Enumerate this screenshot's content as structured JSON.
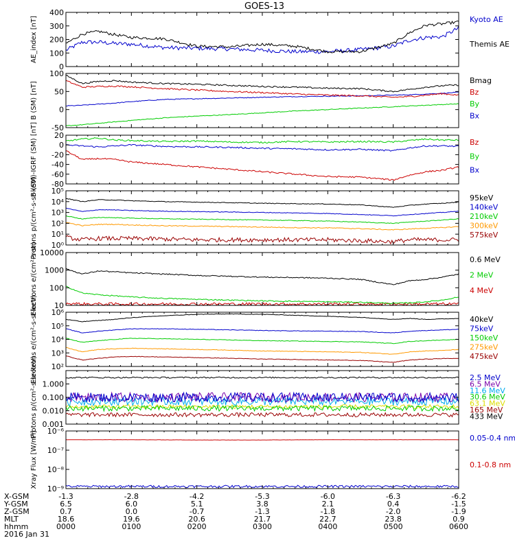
{
  "title": "GOES-13",
  "colors": {
    "black": "#000000",
    "blue": "#0000cc",
    "green": "#00cc00",
    "red": "#cc0000",
    "orange": "#ff9900",
    "cyan": "#00aaee",
    "purple": "#7700aa",
    "yellow": "#dddd00",
    "darkred": "#990000"
  },
  "chart_data": [
    {
      "type": "line",
      "ylabel": "AE_index [nT]",
      "ylim": [
        0,
        400
      ],
      "scale": "linear",
      "yticks": [
        0,
        100,
        200,
        300,
        400
      ],
      "ytick_labels": [
        "0",
        "100",
        "200",
        "300",
        "400"
      ],
      "x": [
        "00:00",
        "00:15",
        "00:30",
        "00:45",
        "01:00",
        "01:30",
        "02:00",
        "02:30",
        "03:00",
        "03:30",
        "04:00",
        "04:30",
        "05:00",
        "05:15",
        "05:30",
        "05:45",
        "06:00"
      ],
      "series": [
        {
          "name": "Kyoto AE",
          "color": "#0000cc",
          "noise": 15,
          "values": [
            120,
            180,
            180,
            170,
            165,
            140,
            135,
            130,
            120,
            110,
            110,
            125,
            150,
            195,
            215,
            220,
            285
          ]
        },
        {
          "name": "Themis AE",
          "color": "#000000",
          "noise": 10,
          "values": [
            170,
            240,
            260,
            235,
            215,
            205,
            150,
            145,
            165,
            150,
            110,
            110,
            170,
            250,
            305,
            315,
            330
          ]
        }
      ]
    },
    {
      "type": "line",
      "ylabel": "B (SM) [nT]",
      "ylim": [
        -50,
        100
      ],
      "scale": "linear",
      "yticks": [
        -50,
        0,
        50,
        100
      ],
      "ytick_labels": [
        "-50",
        "0",
        "50",
        "100"
      ],
      "x": [
        "00:00",
        "00:15",
        "00:30",
        "00:45",
        "01:00",
        "01:30",
        "02:00",
        "02:30",
        "03:00",
        "03:30",
        "04:00",
        "04:30",
        "05:00",
        "05:15",
        "05:30",
        "05:45",
        "06:00"
      ],
      "series": [
        {
          "name": "Bx",
          "color": "#0000cc",
          "noise": 1,
          "values": [
            10,
            12,
            15,
            18,
            22,
            28,
            30,
            32,
            34,
            36,
            37,
            38,
            40,
            41,
            43,
            45,
            48
          ]
        },
        {
          "name": "By",
          "color": "#00cc00",
          "noise": 1,
          "values": [
            -45,
            -42,
            -38,
            -34,
            -30,
            -23,
            -18,
            -14,
            -9,
            -4,
            0,
            4,
            8,
            10,
            12,
            14,
            16
          ]
        },
        {
          "name": "Bz",
          "color": "#cc0000",
          "noise": 2,
          "values": [
            80,
            62,
            64,
            65,
            63,
            58,
            54,
            50,
            47,
            43,
            40,
            38,
            34,
            36,
            40,
            44,
            40
          ]
        },
        {
          "name": "Bmag",
          "color": "#000000",
          "noise": 2,
          "values": [
            95,
            72,
            78,
            80,
            76,
            72,
            70,
            67,
            64,
            62,
            59,
            58,
            50,
            56,
            62,
            66,
            68
          ]
        }
      ]
    },
    {
      "type": "line",
      "ylabel": "B (SM)-IGRF (SM) [nT]",
      "ylim": [
        -80,
        20
      ],
      "scale": "linear",
      "yticks": [
        -80,
        -60,
        -40,
        -20,
        0,
        20
      ],
      "ytick_labels": [
        "-80",
        "-60",
        "-40",
        "-20",
        "0",
        "20"
      ],
      "x": [
        "00:00",
        "00:15",
        "00:30",
        "00:45",
        "01:00",
        "01:30",
        "02:00",
        "02:30",
        "03:00",
        "03:30",
        "04:00",
        "04:30",
        "05:00",
        "05:15",
        "05:30",
        "05:45",
        "06:00"
      ],
      "series": [
        {
          "name": "Bx",
          "color": "#0000cc",
          "noise": 1.5,
          "values": [
            0,
            -2,
            -4,
            -2,
            0,
            -3,
            -4,
            -5,
            -7,
            -8,
            -10,
            -9,
            -12,
            -6,
            -2,
            -2,
            -3
          ]
        },
        {
          "name": "By",
          "color": "#00cc00",
          "noise": 1.5,
          "values": [
            8,
            12,
            14,
            10,
            9,
            7,
            8,
            6,
            5,
            7,
            6,
            7,
            6,
            9,
            12,
            10,
            10
          ]
        },
        {
          "name": "Bz",
          "color": "#cc0000",
          "noise": 1.5,
          "values": [
            -12,
            -30,
            -28,
            -30,
            -35,
            -40,
            -45,
            -50,
            -55,
            -60,
            -65,
            -66,
            -72,
            -62,
            -55,
            -52,
            -45
          ]
        }
      ]
    },
    {
      "type": "line",
      "ylabel": "Protons p/(cm²-s-sr-keV)",
      "ylim": [
        1,
        100000
      ],
      "scale": "log",
      "yticks": [
        1,
        10,
        100,
        1000,
        10000,
        100000
      ],
      "ytick_labels": [
        "10⁰",
        "10¹",
        "10²",
        "10³",
        "10⁴",
        "10⁵"
      ],
      "x": [
        "00:00",
        "00:15",
        "00:30",
        "00:45",
        "01:00",
        "01:30",
        "02:00",
        "02:30",
        "03:00",
        "03:30",
        "04:00",
        "04:30",
        "05:00",
        "05:15",
        "05:30",
        "05:45",
        "06:00"
      ],
      "series": [
        {
          "name": "575keV",
          "color": "#990000",
          "noise": 0.2,
          "values": [
            5,
            3,
            4,
            4,
            4,
            3.5,
            3,
            3,
            3,
            3,
            3,
            2.5,
            2,
            3,
            3,
            3,
            3
          ]
        },
        {
          "name": "300keV",
          "color": "#ff9900",
          "noise": 0.04,
          "values": [
            120,
            60,
            80,
            80,
            70,
            60,
            55,
            50,
            45,
            40,
            38,
            32,
            25,
            30,
            35,
            40,
            50
          ]
        },
        {
          "name": "210keV",
          "color": "#00cc00",
          "noise": 0.03,
          "values": [
            500,
            250,
            350,
            330,
            300,
            260,
            240,
            220,
            200,
            180,
            160,
            130,
            100,
            130,
            160,
            200,
            260
          ]
        },
        {
          "name": "140keV",
          "color": "#0000cc",
          "noise": 0.03,
          "values": [
            2500,
            1200,
            1800,
            1700,
            1500,
            1300,
            1200,
            1100,
            1000,
            900,
            800,
            650,
            500,
            650,
            800,
            1000,
            1300
          ]
        },
        {
          "name": "95keV",
          "color": "#000000",
          "noise": 0.03,
          "values": [
            20000,
            10000,
            15000,
            14000,
            12000,
            10000,
            9000,
            8000,
            7000,
            6500,
            6000,
            5000,
            3000,
            4500,
            6000,
            7000,
            9000
          ]
        }
      ]
    },
    {
      "type": "line",
      "ylabel": "Electrons e/(cm²-s-sr)",
      "ylim": [
        10,
        10000
      ],
      "scale": "log",
      "yticks": [
        10,
        100,
        1000,
        10000
      ],
      "ytick_labels": [
        "10",
        "100",
        "1000",
        "10000"
      ],
      "x": [
        "00:00",
        "00:15",
        "00:30",
        "00:45",
        "01:00",
        "01:30",
        "02:00",
        "02:30",
        "03:00",
        "03:30",
        "04:00",
        "04:30",
        "05:00",
        "05:15",
        "05:30",
        "05:45",
        "06:00"
      ],
      "series": [
        {
          "name": "4 MeV",
          "color": "#cc0000",
          "noise": 0.08,
          "values": [
            13,
            12,
            12,
            12,
            12,
            12,
            12,
            12,
            12,
            12,
            12,
            12,
            12,
            12,
            12,
            12,
            12
          ]
        },
        {
          "name": "2 MeV",
          "color": "#00cc00",
          "noise": 0.03,
          "values": [
            120,
            50,
            40,
            35,
            30,
            25,
            22,
            20,
            18,
            17,
            16,
            15,
            13,
            14,
            16,
            20,
            30
          ]
        },
        {
          "name": "0.6 MeV",
          "color": "#000000",
          "noise": 0.03,
          "values": [
            1200,
            600,
            900,
            800,
            700,
            600,
            500,
            450,
            400,
            380,
            350,
            300,
            150,
            250,
            300,
            400,
            600
          ]
        }
      ]
    },
    {
      "type": "line",
      "ylabel": "Electrons e/(cm²-s-sr-keV)",
      "ylim": [
        100,
        1000000
      ],
      "scale": "log",
      "yticks": [
        100,
        1000,
        10000,
        100000,
        1000000
      ],
      "ytick_labels": [
        "10²",
        "10³",
        "10⁴",
        "10⁵",
        "10⁶"
      ],
      "x": [
        "00:00",
        "00:15",
        "00:30",
        "00:45",
        "01:00",
        "01:30",
        "02:00",
        "02:30",
        "03:00",
        "03:30",
        "04:00",
        "04:30",
        "05:00",
        "05:15",
        "05:30",
        "05:45",
        "06:00"
      ],
      "series": [
        {
          "name": "475keV",
          "color": "#990000",
          "noise": 0.02,
          "values": [
            600,
            300,
            400,
            500,
            550,
            500,
            450,
            400,
            350,
            330,
            300,
            280,
            200,
            300,
            350,
            380,
            400
          ]
        },
        {
          "name": "275keV",
          "color": "#ff9900",
          "noise": 0.02,
          "values": [
            2500,
            1200,
            1800,
            2000,
            2200,
            2000,
            1800,
            1600,
            1400,
            1300,
            1200,
            1100,
            800,
            1200,
            1400,
            1500,
            1800
          ]
        },
        {
          "name": "150keV",
          "color": "#00cc00",
          "noise": 0.02,
          "values": [
            12000,
            6000,
            8000,
            10000,
            12000,
            11000,
            10000,
            9000,
            8000,
            7500,
            7000,
            6500,
            5000,
            7000,
            8000,
            9000,
            10000
          ]
        },
        {
          "name": "75keV",
          "color": "#0000cc",
          "noise": 0.02,
          "values": [
            60000,
            30000,
            40000,
            50000,
            60000,
            60000,
            55000,
            50000,
            45000,
            42000,
            40000,
            38000,
            30000,
            40000,
            45000,
            50000,
            55000
          ]
        },
        {
          "name": "40keV",
          "color": "#000000",
          "noise": 0.02,
          "values": [
            300000,
            200000,
            250000,
            300000,
            400000,
            550000,
            700000,
            750000,
            700000,
            600000,
            500000,
            420000,
            300000,
            350000,
            300000,
            320000,
            350000
          ]
        }
      ]
    },
    {
      "type": "line",
      "ylabel": "Protons p/(cm²-s-sr-keV)",
      "ylim": [
        0.001,
        10
      ],
      "scale": "log",
      "yticks": [
        0.001,
        0.01,
        0.1,
        1
      ],
      "ytick_labels": [
        "0.001",
        "0.010",
        "0.100",
        "1.000"
      ],
      "x": [
        "00:00",
        "00:30",
        "01:00",
        "01:30",
        "02:00",
        "02:30",
        "03:00",
        "03:30",
        "04:00",
        "04:30",
        "05:00",
        "05:30",
        "06:00"
      ],
      "series": [
        {
          "name": "433 MeV",
          "color": "#000000",
          "noise": 0.05,
          "values": [
            3,
            3,
            3,
            3,
            3,
            3,
            3,
            3,
            3,
            3,
            3,
            3,
            3
          ]
        },
        {
          "name": "165 MeV",
          "color": "#990000",
          "noise": 0.15,
          "values": [
            0.005,
            0.005,
            0.005,
            0.005,
            0.005,
            0.005,
            0.005,
            0.005,
            0.005,
            0.005,
            0.005,
            0.005,
            0.005
          ]
        },
        {
          "name": "63.1 MeV",
          "color": "#dddd00",
          "noise": 0.15,
          "values": [
            0.02,
            0.02,
            0.02,
            0.02,
            0.02,
            0.02,
            0.02,
            0.02,
            0.02,
            0.02,
            0.02,
            0.02,
            0.02
          ]
        },
        {
          "name": "30.6 MeV",
          "color": "#00cc00",
          "noise": 0.2,
          "values": [
            0.015,
            0.015,
            0.015,
            0.015,
            0.015,
            0.015,
            0.015,
            0.015,
            0.015,
            0.015,
            0.015,
            0.015,
            0.015
          ]
        },
        {
          "name": "11.6 MeV",
          "color": "#00aaee",
          "noise": 0.3,
          "values": [
            0.05,
            0.05,
            0.05,
            0.05,
            0.05,
            0.05,
            0.05,
            0.05,
            0.05,
            0.05,
            0.05,
            0.05,
            0.05
          ]
        },
        {
          "name": "6.5 MeV",
          "color": "#7700aa",
          "noise": 0.35,
          "values": [
            0.1,
            0.1,
            0.1,
            0.1,
            0.1,
            0.1,
            0.1,
            0.1,
            0.1,
            0.1,
            0.1,
            0.1,
            0.1
          ]
        },
        {
          "name": "2.5 MeV",
          "color": "#0000cc",
          "noise": 0.35,
          "values": [
            0.1,
            0.1,
            0.1,
            0.1,
            0.1,
            0.1,
            0.1,
            0.1,
            0.1,
            0.1,
            0.1,
            0.1,
            0.1
          ]
        }
      ]
    },
    {
      "type": "line",
      "ylabel": "Xray Flux [W/m²]",
      "ylim": [
        1e-09,
        1e-06
      ],
      "scale": "log",
      "yticks": [
        1e-09,
        1e-08,
        1e-07,
        1e-06
      ],
      "ytick_labels": [
        "10⁻⁹",
        "10⁻⁸",
        "10⁻⁷",
        "10⁻⁶"
      ],
      "x": [
        "00:00",
        "01:00",
        "02:00",
        "03:00",
        "04:00",
        "05:00",
        "06:00"
      ],
      "series": [
        {
          "name": "0.1-0.8 nm",
          "color": "#cc0000",
          "noise": 0.005,
          "values": [
            3.5e-07,
            3.5e-07,
            3.4e-07,
            3.4e-07,
            3.5e-07,
            3.5e-07,
            3.5e-07
          ]
        },
        {
          "name": "0.05-0.4 nm",
          "color": "#0000cc",
          "noise": 0.06,
          "values": [
            1.3e-09,
            1.3e-09,
            1.3e-09,
            1.3e-09,
            1.3e-09,
            1.3e-09,
            1.3e-09
          ]
        }
      ]
    }
  ],
  "ephemeris": {
    "labels": [
      "X-GSM",
      "Y-GSM",
      "Z-GSM",
      "MLT",
      "hhmm"
    ],
    "columns": [
      {
        "values": [
          "-1.3",
          "6.5",
          "0.7",
          "18.6",
          "0000"
        ]
      },
      {
        "values": [
          "-2.8",
          "6.0",
          "0.0",
          "19.6",
          "0100"
        ]
      },
      {
        "values": [
          "-4.2",
          "5.1",
          "-0.7",
          "20.6",
          "0200"
        ]
      },
      {
        "values": [
          "-5.3",
          "3.8",
          "-1.3",
          "21.7",
          "0300"
        ]
      },
      {
        "values": [
          "-6.0",
          "2.1",
          "-1.8",
          "22.7",
          "0400"
        ]
      },
      {
        "values": [
          "-6.3",
          "0.4",
          "-2.0",
          "23.8",
          "0500"
        ]
      },
      {
        "values": [
          "-6.2",
          "-1.5",
          "-1.9",
          "0.9",
          "0600"
        ]
      }
    ],
    "date": "2016 Jan 31"
  }
}
